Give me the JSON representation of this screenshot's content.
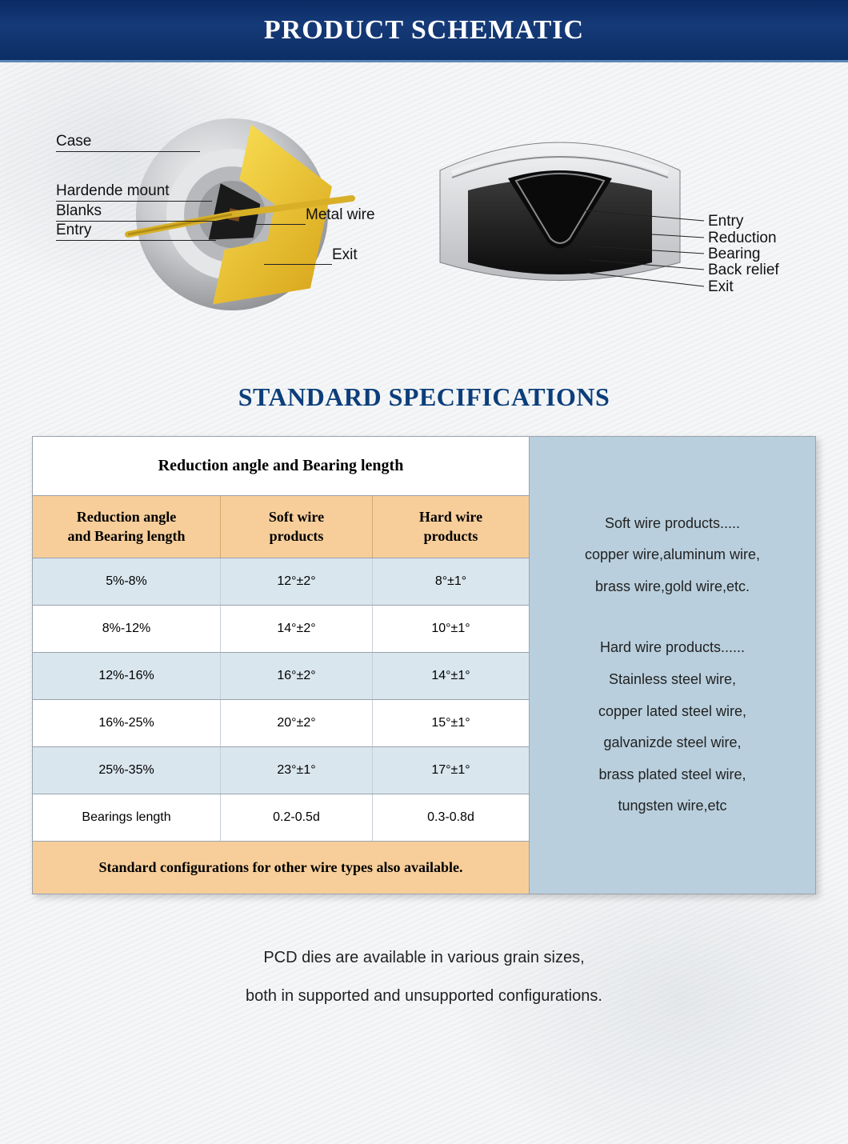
{
  "header": {
    "title": "PRODUCT SCHEMATIC"
  },
  "schematic": {
    "left_labels": {
      "case": "Case",
      "hardened_mount": "Hardende mount",
      "blanks": "Blanks",
      "entry": "Entry",
      "metal_wire": "Metal wire",
      "exit": "Exit"
    },
    "right_labels": {
      "entry": "Entry",
      "reduction": "Reduction",
      "bearing": "Bearing",
      "back_relief": "Back relief",
      "exit": "Exit"
    },
    "colors": {
      "case_outer": "#c9cbce",
      "case_shadow": "#8c8e91",
      "cutaway": "#e8bf2a",
      "blank": "#1a1a1a",
      "wire": "#d8b028",
      "cross_body": "#2a2a2a",
      "cross_metal": "#d5d7da"
    }
  },
  "specs": {
    "heading": "STANDARD SPECIFICATIONS",
    "table": {
      "title": "Reduction angle and Bearing length",
      "columns": [
        "Reduction angle\nand Bearing length",
        "Soft wire\nproducts",
        "Hard wire\nproducts"
      ],
      "rows": [
        [
          "5%-8%",
          "12°±2°",
          "8°±1°"
        ],
        [
          "8%-12%",
          "14°±2°",
          "10°±1°"
        ],
        [
          "12%-16%",
          "16°±2°",
          "14°±1°"
        ],
        [
          "16%-25%",
          "20°±2°",
          "15°±1°"
        ],
        [
          "25%-35%",
          "23°±1°",
          "17°±1°"
        ],
        [
          "Bearings length",
          "0.2-0.5d",
          "0.3-0.8d"
        ]
      ],
      "footer": "Standard configurations for other wire types also available.",
      "colors": {
        "header_bg": "#f7ce9a",
        "row_alt_bg": "#d9e6ee",
        "side_bg": "#b9cfdd",
        "border": "#9aa3ad"
      }
    },
    "side": {
      "soft_title": "Soft wire products.....",
      "soft_lines": [
        "copper wire,aluminum wire,",
        "brass wire,gold wire,etc."
      ],
      "hard_title": "Hard wire products......",
      "hard_lines": [
        "Stainless steel wire,",
        "copper lated steel wire,",
        "galvanizde steel wire,",
        "brass plated steel wire,",
        "tungsten wire,etc"
      ]
    }
  },
  "footnote": {
    "line1": "PCD dies are available in various grain sizes,",
    "line2": "both in supported and unsupported configurations."
  }
}
